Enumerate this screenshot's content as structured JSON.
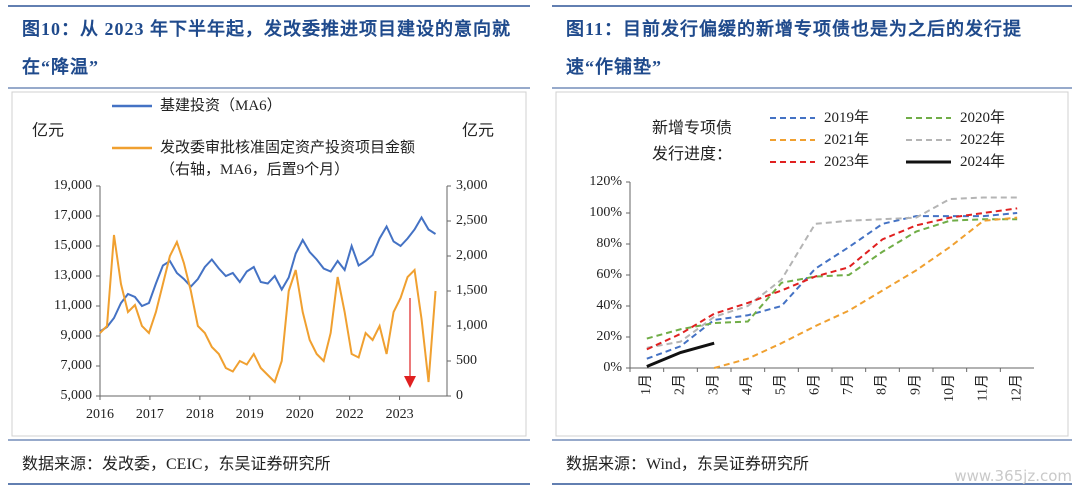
{
  "chart_data": [
    {
      "type": "line",
      "title": "图10：从 2023 年下半年起，发改委推进项目建设的意向就在“降温”",
      "source": "数据来源：发改委，CEIC，东吴证券研究所",
      "y_label": "亿元",
      "y2_label": "亿元",
      "x": [
        2016.0,
        2016.14,
        2016.28,
        2016.42,
        2016.56,
        2016.7,
        2016.84,
        2016.98,
        2017.12,
        2017.26,
        2017.4,
        2017.54,
        2017.68,
        2017.82,
        2017.96,
        2018.1,
        2018.24,
        2018.38,
        2018.52,
        2018.66,
        2018.8,
        2018.94,
        2019.08,
        2019.22,
        2019.36,
        2019.5,
        2019.64,
        2019.78,
        2019.92,
        2020.06,
        2020.2,
        2020.34,
        2020.48,
        2020.62,
        2020.76,
        2020.9,
        2021.04,
        2021.18,
        2021.32,
        2021.46,
        2021.6,
        2021.74,
        2021.88,
        2022.02,
        2022.16,
        2022.3,
        2022.44,
        2022.58,
        2022.72
      ],
      "xlim": [
        2016,
        2022.95
      ],
      "xticks": [
        2016,
        2017,
        2018,
        2019,
        2020,
        {
          "value": 2021,
          "label": "2022"
        },
        {
          "value": 2022,
          "label": "2023"
        }
      ],
      "ylim": [
        5000,
        19000
      ],
      "yticks": [
        {
          "value": 5000,
          "label": "5,000"
        },
        {
          "value": 7000,
          "label": "7,000"
        },
        {
          "value": 9000,
          "label": "9,000"
        },
        {
          "value": 11000,
          "label": "11,000"
        },
        {
          "value": 13000,
          "label": "13,000"
        },
        {
          "value": 15000,
          "label": "15,000"
        },
        {
          "value": 17000,
          "label": "17,000"
        },
        {
          "value": 19000,
          "label": "19,000"
        }
      ],
      "y2lim": [
        0,
        3000
      ],
      "y2ticks": [
        0,
        500,
        {
          "value": 1000,
          "label": "1,000"
        },
        {
          "value": 1500,
          "label": "1,500"
        },
        {
          "value": 2000,
          "label": "2,000"
        },
        {
          "value": 2500,
          "label": "2,500"
        },
        {
          "value": 3000,
          "label": "3,000"
        }
      ],
      "series": [
        {
          "name": "基建投资（MA6）",
          "color": "#4472c4",
          "values": [
            9300,
            9600,
            10200,
            11200,
            11800,
            11600,
            11000,
            11200,
            12500,
            13700,
            14000,
            13200,
            12800,
            12300,
            12800,
            13600,
            14100,
            13500,
            13000,
            13200,
            12600,
            13300,
            13600,
            12600,
            12500,
            13000,
            12100,
            12900,
            14500,
            15400,
            14600,
            14100,
            13500,
            13300,
            14000,
            13400,
            15000,
            13700,
            14000,
            14400,
            15500,
            16300,
            15300,
            15000,
            15500,
            16100,
            16900,
            16100,
            15800
          ]
        },
        {
          "name": "发改委审批核准固定资产投资项目金额（右轴，MA6，后置9个月）",
          "color": "#f0a030",
          "axis": "y2",
          "values": [
            900,
            1000,
            2300,
            1600,
            1200,
            1300,
            1000,
            900,
            1200,
            1600,
            2000,
            2200,
            1900,
            1500,
            1000,
            900,
            700,
            600,
            400,
            350,
            500,
            450,
            600,
            400,
            300,
            200,
            500,
            1500,
            1800,
            1200,
            800,
            600,
            500,
            900,
            1700,
            1200,
            600,
            550,
            900,
            800,
            1000,
            600,
            1200,
            1400,
            1700,
            1800,
            1100,
            200,
            1500
          ]
        }
      ]
    },
    {
      "type": "line",
      "title": "图11：目前发行偏缓的新增专项债也是为之后的发行提速“作铺垫”",
      "source": "数据来源：Wind，东吴证券研究所",
      "legend_title": "新增专项债发行进度：",
      "categories": [
        "1月",
        "2月",
        "3月",
        "4月",
        "5月",
        "6月",
        "7月",
        "8月",
        "9月",
        "10月",
        "11月",
        "12月"
      ],
      "ylim": [
        0,
        120
      ],
      "yticks": [
        {
          "value": 0,
          "label": "0%"
        },
        {
          "value": 20,
          "label": "20%"
        },
        {
          "value": 40,
          "label": "40%"
        },
        {
          "value": 60,
          "label": "60%"
        },
        {
          "value": 80,
          "label": "80%"
        },
        {
          "value": 100,
          "label": "100%"
        },
        {
          "value": 120,
          "label": "120%"
        }
      ],
      "series": [
        {
          "name": "2019年",
          "color": "#4472c4",
          "style": "dashed",
          "values": [
            6,
            14,
            31,
            34,
            40,
            64,
            78,
            93,
            98,
            98,
            98,
            100
          ]
        },
        {
          "name": "2020年",
          "color": "#70ad47",
          "style": "dashed",
          "values": [
            19,
            25,
            29,
            30,
            55,
            59,
            60,
            75,
            88,
            95,
            96,
            96
          ]
        },
        {
          "name": "2021年",
          "color": "#f0a030",
          "style": "dashed",
          "values": [
            null,
            null,
            0,
            6,
            16,
            27,
            37,
            50,
            63,
            78,
            95,
            97
          ]
        },
        {
          "name": "2022年",
          "color": "#b4b4b4",
          "style": "dashed",
          "values": [
            13,
            17,
            33,
            40,
            57,
            93,
            95,
            96,
            97,
            109,
            110,
            110
          ]
        },
        {
          "name": "2023年",
          "color": "#e02020",
          "style": "dashed",
          "values": [
            12,
            22,
            35,
            42,
            50,
            59,
            65,
            83,
            92,
            97,
            100,
            103
          ]
        },
        {
          "name": "2024年",
          "color": "#111111",
          "style": "solid",
          "values": [
            1,
            10,
            16,
            null,
            null,
            null,
            null,
            null,
            null,
            null,
            null,
            null
          ]
        }
      ]
    }
  ],
  "watermark": "www.365jz.com"
}
